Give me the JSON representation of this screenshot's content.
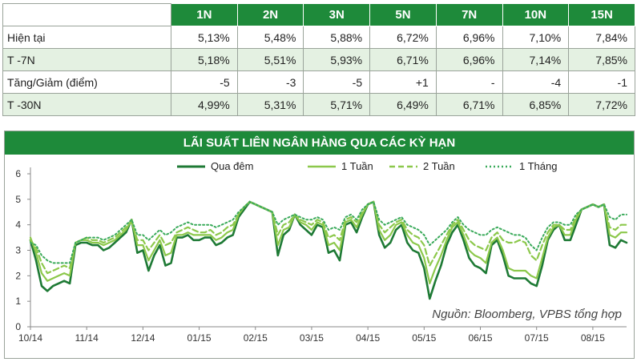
{
  "table": {
    "columns": [
      "1N",
      "2N",
      "3N",
      "5N",
      "7N",
      "10N",
      "15N"
    ],
    "rows": [
      {
        "label": "Hiện tại",
        "values": [
          "5,13%",
          "5,48%",
          "5,88%",
          "6,72%",
          "6,96%",
          "7,10%",
          "7,84%"
        ]
      },
      {
        "label": "T -7N",
        "values": [
          "5,18%",
          "5,51%",
          "5,93%",
          "6,71%",
          "6,96%",
          "7,14%",
          "7,85%"
        ]
      },
      {
        "label": "Tăng/Giảm (điểm)",
        "values": [
          "-5",
          "-3",
          "-5",
          "+1",
          "-",
          "-4",
          "-1"
        ]
      },
      {
        "label": "T -30N",
        "values": [
          "4,99%",
          "5,31%",
          "5,71%",
          "6,49%",
          "6,71%",
          "6,85%",
          "7,72%"
        ]
      }
    ]
  },
  "chart_data": {
    "type": "line",
    "title": "LÃI SUẤT LIÊN NGÂN HÀNG QUA CÁC KỲ HẠN",
    "source_note": "Nguồn: Bloomberg, VPBS tổng hợp",
    "legend_position": "top",
    "ylim": [
      0,
      6
    ],
    "yticks": [
      0,
      1,
      2,
      3,
      4,
      5,
      6
    ],
    "xticks": [
      "10/14",
      "11/14",
      "12/14",
      "01/15",
      "02/15",
      "03/15",
      "04/15",
      "05/15",
      "06/15",
      "07/15",
      "08/15"
    ],
    "xlim": [
      0,
      10.6
    ],
    "grid": false,
    "x": [
      0,
      0.1,
      0.2,
      0.3,
      0.4,
      0.5,
      0.6,
      0.7,
      0.8,
      0.9,
      1.0,
      1.1,
      1.2,
      1.3,
      1.4,
      1.5,
      1.6,
      1.7,
      1.8,
      1.9,
      2.0,
      2.1,
      2.2,
      2.3,
      2.4,
      2.5,
      2.6,
      2.7,
      2.8,
      2.9,
      3.0,
      3.1,
      3.2,
      3.3,
      3.4,
      3.5,
      3.6,
      3.7,
      3.8,
      3.9,
      4.0,
      4.1,
      4.2,
      4.3,
      4.4,
      4.5,
      4.6,
      4.7,
      4.8,
      4.9,
      5.0,
      5.1,
      5.2,
      5.3,
      5.4,
      5.5,
      5.6,
      5.7,
      5.8,
      5.9,
      6.0,
      6.1,
      6.2,
      6.3,
      6.4,
      6.5,
      6.6,
      6.7,
      6.8,
      6.9,
      7.0,
      7.1,
      7.2,
      7.3,
      7.4,
      7.5,
      7.6,
      7.7,
      7.8,
      7.9,
      8.0,
      8.1,
      8.2,
      8.3,
      8.4,
      8.5,
      8.6,
      8.7,
      8.8,
      8.9,
      9.0,
      9.1,
      9.2,
      9.3,
      9.4,
      9.5,
      9.6,
      9.7,
      9.8,
      9.9,
      10.0,
      10.1,
      10.2,
      10.3,
      10.4,
      10.5,
      10.6
    ],
    "series": [
      {
        "name": "Qua đêm",
        "color": "#1e7a35",
        "style": "solid",
        "width": 2.6,
        "values": [
          3.4,
          2.6,
          1.6,
          1.4,
          1.6,
          1.7,
          1.8,
          1.7,
          3.2,
          3.3,
          3.3,
          3.2,
          3.2,
          3.0,
          3.1,
          3.3,
          3.5,
          3.7,
          4.2,
          2.9,
          3.0,
          2.2,
          2.8,
          3.2,
          2.4,
          2.5,
          3.5,
          3.5,
          3.6,
          3.4,
          3.4,
          3.5,
          3.5,
          3.2,
          3.3,
          3.5,
          3.6,
          4.3,
          4.6,
          4.9,
          4.8,
          4.7,
          4.6,
          4.5,
          2.8,
          3.6,
          3.8,
          4.4,
          4.0,
          3.8,
          3.6,
          4.0,
          3.9,
          2.9,
          3.0,
          2.6,
          4.0,
          4.1,
          3.7,
          4.3,
          4.8,
          4.9,
          3.6,
          3.1,
          3.3,
          3.8,
          4.0,
          3.3,
          3.0,
          2.9,
          2.3,
          1.1,
          1.8,
          2.4,
          3.2,
          3.7,
          4.0,
          3.4,
          2.7,
          2.4,
          2.3,
          2.1,
          3.2,
          3.4,
          2.8,
          2.0,
          1.9,
          1.9,
          1.9,
          1.7,
          1.6,
          2.4,
          3.4,
          3.8,
          4.0,
          3.4,
          3.4,
          4.0,
          4.6,
          4.7,
          4.8,
          4.7,
          4.8,
          3.2,
          3.1,
          3.4,
          3.3
        ]
      },
      {
        "name": "1 Tuần",
        "color": "#8cc84b",
        "style": "solid",
        "width": 2.2,
        "values": [
          3.5,
          2.9,
          2.1,
          1.8,
          1.9,
          2.0,
          2.1,
          2.0,
          3.3,
          3.4,
          3.4,
          3.3,
          3.3,
          3.2,
          3.3,
          3.4,
          3.6,
          3.8,
          4.2,
          3.2,
          3.2,
          2.6,
          3.0,
          3.4,
          2.8,
          2.9,
          3.6,
          3.6,
          3.7,
          3.6,
          3.6,
          3.6,
          3.6,
          3.4,
          3.5,
          3.7,
          3.8,
          4.4,
          4.7,
          4.9,
          4.8,
          4.7,
          4.6,
          4.5,
          3.2,
          3.8,
          3.9,
          4.4,
          4.1,
          4.0,
          3.8,
          4.1,
          4.0,
          3.2,
          3.3,
          3.0,
          4.1,
          4.2,
          3.9,
          4.4,
          4.8,
          4.9,
          3.8,
          3.4,
          3.6,
          4.0,
          4.1,
          3.6,
          3.3,
          3.2,
          2.7,
          1.7,
          2.3,
          2.8,
          3.4,
          3.9,
          4.1,
          3.6,
          3.0,
          2.8,
          2.7,
          2.5,
          3.3,
          3.5,
          3.0,
          2.3,
          2.2,
          2.2,
          2.2,
          2.0,
          1.9,
          2.7,
          3.5,
          3.9,
          4.0,
          3.6,
          3.6,
          4.2,
          4.6,
          4.7,
          4.8,
          4.7,
          4.8,
          3.6,
          3.5,
          3.7,
          3.7
        ]
      },
      {
        "name": "2 Tuần",
        "color": "#8cc84b",
        "style": "dashed",
        "width": 2.2,
        "values": [
          3.4,
          3.1,
          2.5,
          2.1,
          2.2,
          2.3,
          2.4,
          2.3,
          3.3,
          3.4,
          3.5,
          3.4,
          3.4,
          3.3,
          3.4,
          3.5,
          3.7,
          3.9,
          4.1,
          3.4,
          3.4,
          3.0,
          3.3,
          3.6,
          3.2,
          3.3,
          3.7,
          3.8,
          3.9,
          3.8,
          3.7,
          3.7,
          3.8,
          3.6,
          3.7,
          3.9,
          4.0,
          4.4,
          4.7,
          4.9,
          4.8,
          4.7,
          4.6,
          4.5,
          3.6,
          4.0,
          4.1,
          4.4,
          4.2,
          4.1,
          4.0,
          4.2,
          4.1,
          3.5,
          3.6,
          3.4,
          4.2,
          4.3,
          4.1,
          4.5,
          4.8,
          4.9,
          4.0,
          3.7,
          3.9,
          4.1,
          4.2,
          3.8,
          3.6,
          3.5,
          3.2,
          2.4,
          2.8,
          3.2,
          3.6,
          4.0,
          4.2,
          3.8,
          3.4,
          3.2,
          3.1,
          3.0,
          3.5,
          3.7,
          3.4,
          3.3,
          3.3,
          3.4,
          3.3,
          2.8,
          2.6,
          3.2,
          3.7,
          4.0,
          4.0,
          3.8,
          3.8,
          4.3,
          4.6,
          4.7,
          4.8,
          4.7,
          4.8,
          3.9,
          3.8,
          4.0,
          4.0
        ]
      },
      {
        "name": "1 Tháng",
        "color": "#3aaa5a",
        "style": "dotted",
        "width": 2.0,
        "values": [
          3.3,
          3.2,
          2.8,
          2.6,
          2.5,
          2.5,
          2.5,
          2.5,
          3.3,
          3.4,
          3.5,
          3.5,
          3.5,
          3.4,
          3.5,
          3.6,
          3.8,
          4.0,
          4.2,
          3.6,
          3.6,
          3.4,
          3.6,
          3.8,
          3.6,
          3.7,
          3.9,
          4.0,
          4.1,
          4.0,
          4.0,
          4.0,
          4.0,
          3.9,
          4.0,
          4.1,
          4.2,
          4.5,
          4.7,
          4.9,
          4.8,
          4.7,
          4.6,
          4.5,
          4.0,
          4.2,
          4.3,
          4.4,
          4.3,
          4.2,
          4.2,
          4.3,
          4.2,
          3.8,
          3.9,
          3.8,
          4.3,
          4.4,
          4.2,
          4.6,
          4.8,
          4.9,
          4.2,
          4.0,
          4.1,
          4.2,
          4.3,
          4.0,
          3.9,
          3.8,
          3.6,
          3.2,
          3.4,
          3.6,
          3.8,
          4.1,
          4.3,
          4.0,
          3.8,
          3.7,
          3.6,
          3.6,
          3.8,
          3.9,
          3.8,
          3.7,
          3.6,
          3.6,
          3.5,
          3.2,
          3.0,
          3.5,
          3.9,
          4.1,
          4.1,
          4.0,
          4.0,
          4.4,
          4.6,
          4.7,
          4.8,
          4.7,
          4.8,
          4.3,
          4.2,
          4.4,
          4.4
        ]
      }
    ]
  }
}
